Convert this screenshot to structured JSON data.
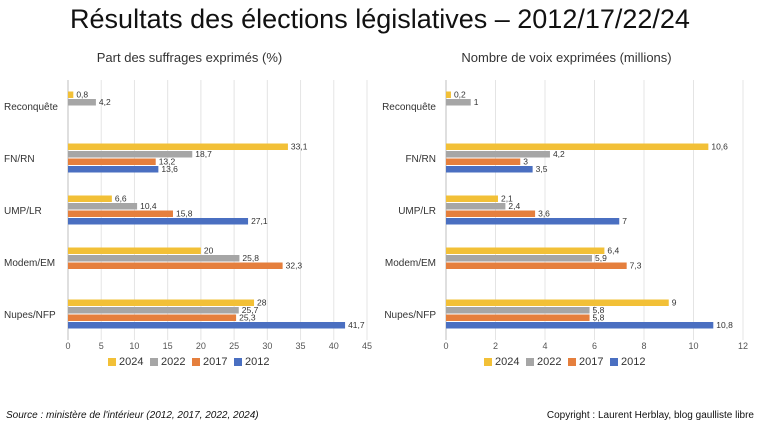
{
  "title": "Résultats des élections législatives – 2012/17/22/24",
  "footer": {
    "source": "Source : ministère de l'intérieur (2012, 2017, 2022, 2024)",
    "copyright": "Copyright : Laurent Herblay, blog gaulliste libre"
  },
  "colors": {
    "2024": "#f2c037",
    "2022": "#a6a6a6",
    "2017": "#e57f3d",
    "2012": "#4a6fc1"
  },
  "chart_data": [
    {
      "type": "bar",
      "orientation": "horizontal",
      "title": "Part des suffrages exprimés (%)",
      "categories": [
        "Reconquête",
        "FN/RN",
        "UMP/LR",
        "Modem/EM",
        "Nupes/NFP"
      ],
      "xlim": [
        0,
        45
      ],
      "xticks": [
        "0",
        "5",
        "10",
        "15",
        "20",
        "25",
        "30",
        "35",
        "40",
        "45"
      ],
      "grid": true,
      "legend_position": "bottom",
      "series": [
        {
          "name": "2024",
          "values": [
            0.8,
            33.1,
            6.6,
            20,
            28
          ],
          "labels": [
            "0,8",
            "33,1",
            "6,6",
            "20",
            "28"
          ]
        },
        {
          "name": "2022",
          "values": [
            4.2,
            18.7,
            10.4,
            25.8,
            25.7
          ],
          "labels": [
            "4,2",
            "18,7",
            "10,4",
            "25,8",
            "25,7"
          ]
        },
        {
          "name": "2017",
          "values": [
            null,
            13.2,
            15.8,
            32.3,
            25.3
          ],
          "labels": [
            "",
            "13,2",
            "15,8",
            "32,3",
            "25,3"
          ]
        },
        {
          "name": "2012",
          "values": [
            null,
            13.6,
            27.1,
            null,
            41.7
          ],
          "labels": [
            "",
            "13,6",
            "27,1",
            "",
            "41,7"
          ]
        }
      ]
    },
    {
      "type": "bar",
      "orientation": "horizontal",
      "title": "Nombre de voix exprimées (millions)",
      "categories": [
        "Reconquête",
        "FN/RN",
        "UMP/LR",
        "Modem/EM",
        "Nupes/NFP"
      ],
      "xlim": [
        0,
        12
      ],
      "xticks": [
        "0",
        "2",
        "4",
        "6",
        "8",
        "10",
        "12"
      ],
      "grid": true,
      "legend_position": "bottom",
      "series": [
        {
          "name": "2024",
          "values": [
            0.2,
            10.6,
            2.1,
            6.4,
            9
          ],
          "labels": [
            "0,2",
            "10,6",
            "2,1",
            "6,4",
            "9"
          ]
        },
        {
          "name": "2022",
          "values": [
            1,
            4.2,
            2.4,
            5.9,
            5.8
          ],
          "labels": [
            "1",
            "4,2",
            "2,4",
            "5,9",
            "5,8"
          ]
        },
        {
          "name": "2017",
          "values": [
            null,
            3,
            3.6,
            7.3,
            5.8
          ],
          "labels": [
            "",
            "3",
            "3,6",
            "7,3",
            "5,8"
          ]
        },
        {
          "name": "2012",
          "values": [
            null,
            3.5,
            7,
            null,
            10.8
          ],
          "labels": [
            "",
            "3,5",
            "7",
            "",
            "10,8"
          ]
        }
      ]
    }
  ]
}
